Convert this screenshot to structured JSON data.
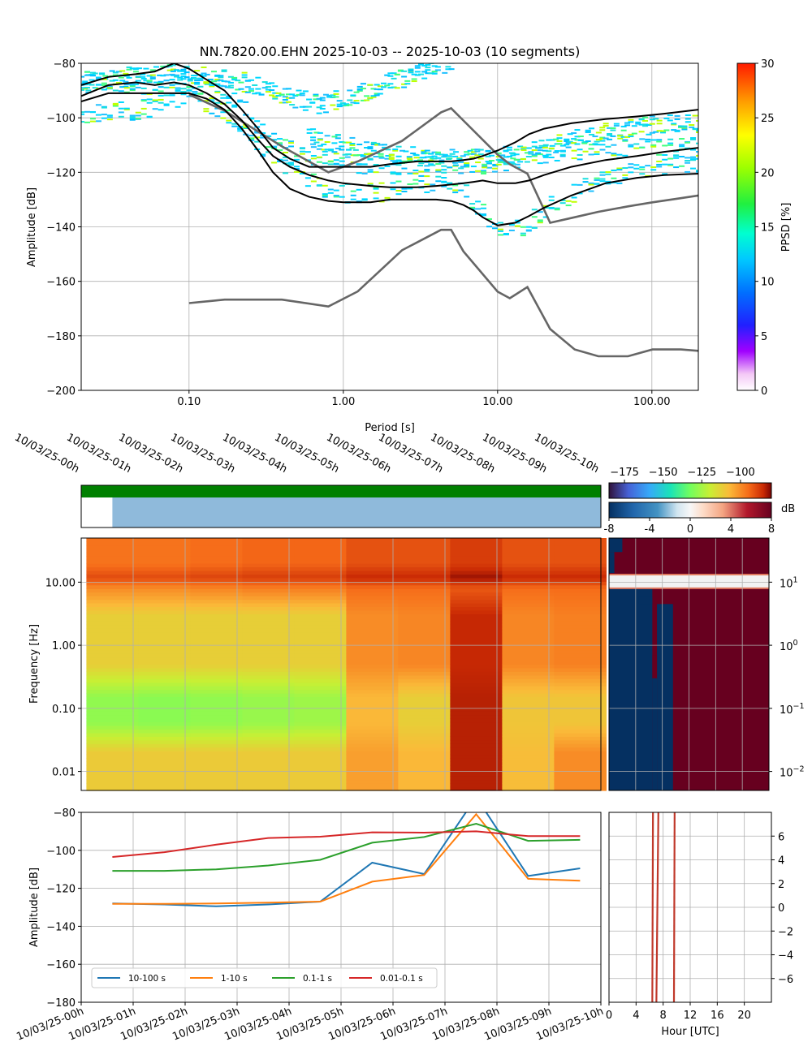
{
  "chart_data": [
    {
      "type": "heatmap",
      "panel": "ppsd",
      "title": "NN.7820.00.EHN   2025-10-03 -- 2025-10-03  (10 segments)",
      "xlabel": "Period [s]",
      "ylabel": "Amplitude [dB]",
      "x_scale": "log",
      "xlim": [
        0.02,
        200
      ],
      "ylim": [
        -200,
        -80
      ],
      "x_ticks": [
        0.1,
        1,
        10,
        100
      ],
      "x_tick_labels": [
        "0.10",
        "1.00",
        "10.00",
        "100.00"
      ],
      "y_ticks": [
        -200,
        -180,
        -160,
        -140,
        -120,
        -100,
        -80
      ],
      "y_tick_labels": [
        "−200",
        "−180",
        "−160",
        "−140",
        "−120",
        "−100",
        "−80"
      ],
      "grid": true,
      "colorbar": {
        "label": "PPSD [%]",
        "range": [
          0,
          30
        ],
        "ticks": [
          0,
          5,
          10,
          15,
          20,
          25,
          30
        ],
        "tick_labels": [
          "0",
          "5",
          "10",
          "15",
          "20",
          "25",
          "30"
        ]
      },
      "noise_models": {
        "nhnm": {
          "period": [
            0.1,
            0.17,
            0.4,
            0.8,
            1.24,
            2.4,
            4.3,
            5.0,
            6.0,
            10.0,
            12.0,
            15.6,
            21.9,
            31.6,
            45.0,
            70.0,
            101.0,
            154.0,
            200.0
          ],
          "db": [
            -91.5,
            -97.4,
            -110.5,
            -120.0,
            -116.0,
            -108.5,
            -98.0,
            -96.5,
            -101.0,
            -113.5,
            -117.0,
            -120.5,
            -138.5,
            -136.5,
            -134.5,
            -132.5,
            -131.0,
            -129.5,
            -128.5
          ]
        },
        "nlnm": {
          "period": [
            0.1,
            0.17,
            0.4,
            0.8,
            1.24,
            2.4,
            4.3,
            5.0,
            6.0,
            10.0,
            12.0,
            15.6,
            21.9,
            31.6,
            45.0,
            70.0,
            101.0,
            154.0,
            200.0
          ],
          "db": [
            -168.0,
            -166.7,
            -166.7,
            -169.2,
            -163.7,
            -148.6,
            -141.1,
            -141.1,
            -149.0,
            -163.8,
            -166.2,
            -162.1,
            -177.5,
            -185.0,
            -187.5,
            -187.5,
            -185.0,
            -185.0,
            -185.5
          ]
        }
      },
      "percentiles": [
        {
          "name": "upper",
          "period": [
            0.02,
            0.03,
            0.045,
            0.06,
            0.08,
            0.1,
            0.13,
            0.17,
            0.22,
            0.28,
            0.35,
            0.45,
            0.6,
            0.8,
            1.0,
            1.5,
            2.0,
            3.0,
            4.0,
            5.0,
            6.0,
            7.0,
            8.0,
            10.0,
            13.0,
            16.0,
            20.0,
            30.0,
            50.0,
            80.0,
            120.0,
            200.0
          ],
          "db": [
            -88,
            -85,
            -84,
            -83,
            -80,
            -82,
            -86,
            -90,
            -97,
            -104,
            -111,
            -115,
            -118,
            -118,
            -118,
            -118,
            -117,
            -116,
            -116,
            -116,
            -115.5,
            -115,
            -114,
            -112,
            -109,
            -106,
            -104,
            -102,
            -100.5,
            -99.5,
            -98.5,
            -97
          ]
        },
        {
          "name": "median",
          "period": [
            0.02,
            0.03,
            0.045,
            0.06,
            0.08,
            0.1,
            0.13,
            0.17,
            0.22,
            0.28,
            0.35,
            0.45,
            0.6,
            0.8,
            1.0,
            1.5,
            2.0,
            3.0,
            4.0,
            5.0,
            6.0,
            7.0,
            8.0,
            10.0,
            13.0,
            16.0,
            20.0,
            30.0,
            50.0,
            80.0,
            120.0,
            200.0
          ],
          "db": [
            -92,
            -88,
            -87,
            -88,
            -87,
            -88,
            -91,
            -95,
            -101,
            -108,
            -114,
            -118,
            -121,
            -123,
            -124,
            -125,
            -125.5,
            -125.5,
            -125,
            -124.5,
            -124,
            -123.5,
            -123,
            -124,
            -124,
            -123,
            -121,
            -118,
            -115.5,
            -114,
            -112.5,
            -111
          ]
        },
        {
          "name": "lower",
          "period": [
            0.02,
            0.03,
            0.045,
            0.06,
            0.08,
            0.1,
            0.13,
            0.17,
            0.22,
            0.28,
            0.35,
            0.45,
            0.6,
            0.8,
            1.0,
            1.5,
            2.0,
            3.0,
            4.0,
            5.0,
            6.0,
            7.0,
            8.0,
            10.0,
            13.0,
            16.0,
            20.0,
            30.0,
            50.0,
            80.0,
            120.0,
            200.0
          ],
          "db": [
            -94,
            -91,
            -91,
            -91,
            -91,
            -91,
            -93,
            -97,
            -104,
            -112,
            -120,
            -126,
            -129,
            -130.5,
            -131,
            -131,
            -130,
            -130,
            -130,
            -130.5,
            -132,
            -134,
            -136.5,
            -139.5,
            -138.5,
            -136,
            -133,
            -128.5,
            -124,
            -122,
            -121,
            -120.5
          ]
        }
      ],
      "density_ridges": [
        {
          "name": "cyan-upper",
          "period": [
            0.02,
            0.05,
            0.1,
            0.2,
            0.35,
            0.5,
            0.7,
            1.0,
            1.5,
            2.0,
            3.0,
            4.0,
            5.0
          ],
          "db": [
            -88,
            -84,
            -84,
            -86,
            -90,
            -93,
            -95,
            -93,
            -90,
            -87,
            -84,
            -81,
            -80
          ]
        },
        {
          "name": "lower-band",
          "period": [
            0.02,
            0.05,
            0.1,
            0.2,
            0.3,
            0.5,
            0.8,
            1.2,
            2.0,
            3.0,
            4.5,
            6.0,
            8.0,
            11.0,
            15.0,
            20.0,
            30.0,
            50.0,
            100.0,
            200.0
          ],
          "db": [
            -99,
            -97,
            -92,
            -100,
            -111,
            -121,
            -127,
            -128,
            -127,
            -125,
            -122,
            -127,
            -135,
            -143,
            -140,
            -134,
            -128,
            -122,
            -118,
            -117
          ]
        },
        {
          "name": "mid-band",
          "period": [
            0.02,
            0.05,
            0.1,
            0.2,
            0.3,
            0.5,
            0.8,
            1.2,
            2.0,
            3.0,
            5.0,
            8.0,
            12.0,
            20.0,
            40.0,
            80.0,
            200.0
          ],
          "db": [
            -86,
            -88,
            -87,
            -93,
            -105,
            -112,
            -116,
            -117,
            -118,
            -117,
            -117,
            -118,
            -116,
            -113,
            -112,
            -111,
            -110
          ]
        },
        {
          "name": "high-band",
          "period": [
            0.6,
            1.0,
            2.0,
            4.0,
            8.0,
            15.0,
            30.0,
            80.0,
            200.0
          ],
          "db": [
            -107,
            -110,
            -113,
            -115,
            -115,
            -113,
            -108,
            -103,
            -102
          ]
        }
      ]
    },
    {
      "type": "heatmap",
      "panel": "spectrogram",
      "ylabel": "Frequency [Hz]",
      "y_scale": "log",
      "ylim": [
        0.005,
        50
      ],
      "y_ticks": [
        0.01,
        0.1,
        1,
        10
      ],
      "y_tick_labels": [
        "0.01",
        "0.10",
        "1.00",
        "10.00"
      ],
      "time_ticks": [
        "10/03/25-00h",
        "10/03/25-01h",
        "10/03/25-02h",
        "10/03/25-03h",
        "10/03/25-04h",
        "10/03/25-05h",
        "10/03/25-06h",
        "10/03/25-07h",
        "10/03/25-08h",
        "10/03/25-09h",
        "10/03/25-10h"
      ],
      "time_range_hours": [
        0,
        10
      ],
      "colorbar": {
        "range": [
          -185,
          -80
        ],
        "ticks": [
          -175,
          -150,
          -125,
          -100
        ],
        "tick_labels": [
          "−175",
          "−150",
          "−125",
          "−100"
        ]
      },
      "segments": [
        {
          "start_h": 0.1,
          "end_h": 1.1,
          "band_db": {
            "hf": -96,
            "mid": -112,
            "microseism": -128,
            "lp": -111
          }
        },
        {
          "start_h": 1.1,
          "end_h": 2.1,
          "band_db": {
            "hf": -96,
            "mid": -112,
            "microseism": -129,
            "lp": -111
          }
        },
        {
          "start_h": 2.1,
          "end_h": 3.1,
          "band_db": {
            "hf": -95,
            "mid": -112,
            "microseism": -128,
            "lp": -111
          }
        },
        {
          "start_h": 3.1,
          "end_h": 4.1,
          "band_db": {
            "hf": -94,
            "mid": -112,
            "microseism": -127,
            "lp": -111
          }
        },
        {
          "start_h": 4.1,
          "end_h": 5.1,
          "band_db": {
            "hf": -94,
            "mid": -112,
            "microseism": -126,
            "lp": -111
          }
        },
        {
          "start_h": 5.1,
          "end_h": 6.1,
          "band_db": {
            "hf": -91,
            "mid": -100,
            "microseism": -107,
            "lp": -103
          }
        },
        {
          "start_h": 6.1,
          "end_h": 7.1,
          "band_db": {
            "hf": -91,
            "mid": -99,
            "microseism": -112,
            "lp": -107
          }
        },
        {
          "start_h": 7.1,
          "end_h": 8.1,
          "band_db": {
            "hf": -88,
            "mid": -85,
            "microseism": -84,
            "lp": -84
          }
        },
        {
          "start_h": 8.1,
          "end_h": 9.1,
          "band_db": {
            "hf": -91,
            "mid": -99,
            "microseism": -110,
            "lp": -108
          }
        },
        {
          "start_h": 9.1,
          "end_h": 10.1,
          "band_db": {
            "hf": -91,
            "mid": -98,
            "microseism": -110,
            "lp": -100
          }
        }
      ]
    },
    {
      "type": "line",
      "panel": "band-amplitudes",
      "ylabel": "Amplitude [dB]",
      "ylim": [
        -180,
        -80
      ],
      "y_ticks": [
        -180,
        -160,
        -140,
        -120,
        -100,
        -80
      ],
      "y_tick_labels": [
        "−180",
        "−160",
        "−140",
        "−120",
        "−100",
        "−80"
      ],
      "time_ticks": [
        "10/03/25-00h",
        "10/03/25-01h",
        "10/03/25-02h",
        "10/03/25-03h",
        "10/03/25-04h",
        "10/03/25-05h",
        "10/03/25-06h",
        "10/03/25-07h",
        "10/03/25-08h",
        "10/03/25-09h",
        "10/03/25-10h"
      ],
      "x_hours": [
        0.6,
        1.6,
        2.6,
        3.6,
        4.6,
        5.6,
        6.6,
        7.6,
        8.6,
        9.6
      ],
      "legend": "lower-left",
      "series": [
        {
          "name": "10-100 s",
          "color": "#1f77b4",
          "values": [
            -128,
            -128.5,
            -129.5,
            -128.5,
            -127,
            -106.5,
            -112.5,
            -72,
            -113.5,
            -109.5
          ]
        },
        {
          "name": "1-10 s",
          "color": "#ff7f0e",
          "values": [
            -128.2,
            -128.2,
            -128,
            -127.5,
            -127,
            -116.5,
            -113,
            -81,
            -115,
            -116
          ]
        },
        {
          "name": "0.1-1 s",
          "color": "#2ca02c",
          "values": [
            -110.8,
            -110.8,
            -110,
            -108,
            -105,
            -96,
            -93,
            -86,
            -95,
            -94.5
          ]
        },
        {
          "name": "0.01-0.1 s",
          "color": "#d62728",
          "values": [
            -103.5,
            -101,
            -97,
            -93.5,
            -92.8,
            -90.5,
            -90.7,
            -90,
            -92.5,
            -92.5
          ]
        }
      ]
    },
    {
      "type": "heatmap",
      "panel": "day-hour-diff",
      "colorbar": {
        "label": "dB",
        "range": [
          -8,
          8
        ],
        "ticks": [
          -8,
          -4,
          0,
          4,
          8
        ],
        "tick_labels": [
          "-8",
          "-4",
          "0",
          "4",
          "8"
        ]
      },
      "y_ticks": [
        0.01,
        0.1,
        1,
        10
      ],
      "y_tick_labels_mantissa": "10",
      "y_tick_labels_exp": [
        "−2",
        "−1",
        "0",
        "1"
      ],
      "x_ticks": [
        0,
        4,
        8,
        12,
        16,
        20
      ],
      "x_tick_labels": [
        "0",
        "4",
        "8",
        "12",
        "16",
        "20"
      ]
    },
    {
      "type": "line",
      "panel": "hour-diff",
      "xlabel": "Hour [UTC]",
      "xlim": [
        0,
        24
      ],
      "ylim": [
        -8,
        8
      ],
      "x_ticks": [
        0,
        4,
        8,
        12,
        16,
        20
      ],
      "x_tick_labels": [
        "0",
        "4",
        "8",
        "12",
        "16",
        "20"
      ],
      "y_ticks": [
        -6,
        -4,
        -2,
        0,
        2,
        4,
        6
      ],
      "y_tick_labels": [
        "−6",
        "−4",
        "−2",
        "0",
        "2",
        "4",
        "6"
      ],
      "line_color": "#c0392b",
      "vertical_lines": [
        {
          "x": [
            6.4,
            6.5
          ]
        },
        {
          "x": [
            7.0,
            7.3
          ]
        },
        {
          "x": [
            9.6,
            9.7
          ]
        }
      ]
    }
  ],
  "availability": {
    "coverage_bar_color": "#008000",
    "gap_color": "#ffffff",
    "data_color": "#8fbadb",
    "gap_end_hour": 0.6
  }
}
